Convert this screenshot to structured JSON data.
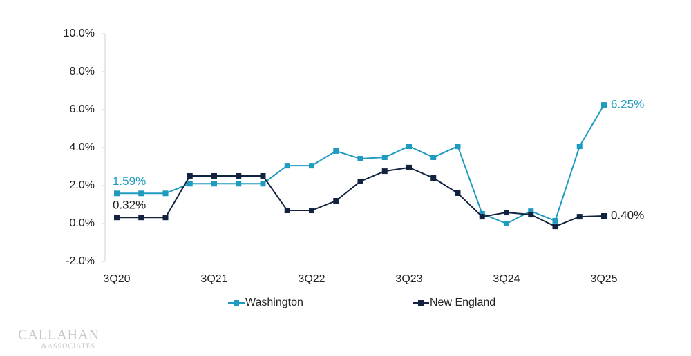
{
  "chart_data": {
    "type": "line",
    "categories": [
      "3Q20",
      null,
      null,
      null,
      "3Q21",
      null,
      null,
      null,
      "3Q22",
      null,
      null,
      null,
      "3Q23",
      null,
      null,
      null,
      "3Q24",
      null,
      null,
      null,
      "3Q25"
    ],
    "series": [
      {
        "name": "Washington",
        "color": "#1f9bc0",
        "values": [
          1.59,
          1.59,
          1.59,
          2.1,
          2.1,
          2.1,
          2.1,
          3.05,
          3.05,
          3.82,
          3.42,
          3.49,
          4.07,
          3.49,
          4.07,
          0.51,
          0.0,
          0.65,
          0.15,
          4.07,
          6.25
        ],
        "value_labels": [
          "1.59%",
          null,
          null,
          null,
          null,
          null,
          null,
          null,
          null,
          null,
          null,
          null,
          null,
          null,
          null,
          null,
          null,
          null,
          null,
          null,
          "6.25%"
        ]
      },
      {
        "name": "New England",
        "color": "#13233f",
        "values": [
          0.32,
          0.32,
          0.32,
          2.51,
          2.51,
          2.51,
          2.51,
          0.69,
          0.69,
          1.2,
          2.22,
          2.76,
          2.95,
          2.4,
          1.6,
          0.36,
          0.58,
          0.47,
          -0.15,
          0.36,
          0.4
        ],
        "value_labels": [
          "0.32%",
          null,
          null,
          null,
          null,
          null,
          null,
          null,
          null,
          null,
          null,
          null,
          null,
          null,
          null,
          null,
          null,
          null,
          null,
          null,
          "0.40%"
        ]
      }
    ],
    "ylim": [
      -2,
      10
    ],
    "yticks": [
      {
        "value": -2,
        "label": "-2.0%"
      },
      {
        "value": 0,
        "label": "0.0%"
      },
      {
        "value": 2,
        "label": "2.0%"
      },
      {
        "value": 4,
        "label": "4.0%"
      },
      {
        "value": 6,
        "label": "6.0%"
      },
      {
        "value": 8,
        "label": "8.0%"
      },
      {
        "value": 10,
        "label": "10.0%"
      }
    ],
    "grid": false,
    "legend": "bottom"
  },
  "logo": {
    "line1": "CALLAHAN",
    "line2": "&ASSOCIATES"
  }
}
